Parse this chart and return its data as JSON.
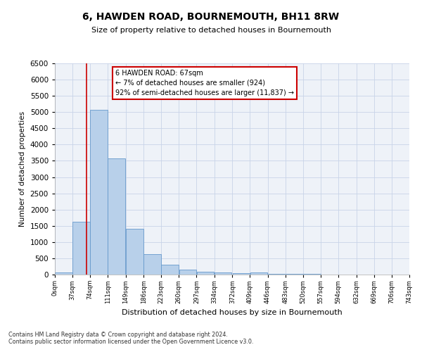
{
  "title": "6, HAWDEN ROAD, BOURNEMOUTH, BH11 8RW",
  "subtitle": "Size of property relative to detached houses in Bournemouth",
  "xlabel": "Distribution of detached houses by size in Bournemouth",
  "ylabel": "Number of detached properties",
  "bar_color": "#b8d0ea",
  "bar_edge_color": "#6699cc",
  "background_color": "#eef2f8",
  "annotation_box_color": "#ffffff",
  "annotation_border_color": "#cc0000",
  "vline_color": "#cc0000",
  "vline_x": 67,
  "annotation_title": "6 HAWDEN ROAD: 67sqm",
  "annotation_line1": "← 7% of detached houses are smaller (924)",
  "annotation_line2": "92% of semi-detached houses are larger (11,837) →",
  "footer_line1": "Contains HM Land Registry data © Crown copyright and database right 2024.",
  "footer_line2": "Contains public sector information licensed under the Open Government Licence v3.0.",
  "bin_edges": [
    0,
    37,
    74,
    111,
    149,
    186,
    223,
    260,
    297,
    334,
    372,
    409,
    446,
    483,
    520,
    557,
    594,
    632,
    669,
    706,
    743
  ],
  "bar_heights": [
    75,
    1620,
    5080,
    3580,
    1400,
    620,
    300,
    145,
    90,
    55,
    40,
    55,
    30,
    20,
    15,
    10,
    8,
    5,
    5,
    5
  ],
  "tick_labels": [
    "0sqm",
    "37sqm",
    "74sqm",
    "111sqm",
    "149sqm",
    "186sqm",
    "223sqm",
    "260sqm",
    "297sqm",
    "334sqm",
    "372sqm",
    "409sqm",
    "446sqm",
    "483sqm",
    "520sqm",
    "557sqm",
    "594sqm",
    "632sqm",
    "669sqm",
    "706sqm",
    "743sqm"
  ],
  "ylim": [
    0,
    6500
  ],
  "yticks": [
    0,
    500,
    1000,
    1500,
    2000,
    2500,
    3000,
    3500,
    4000,
    4500,
    5000,
    5500,
    6000,
    6500
  ]
}
